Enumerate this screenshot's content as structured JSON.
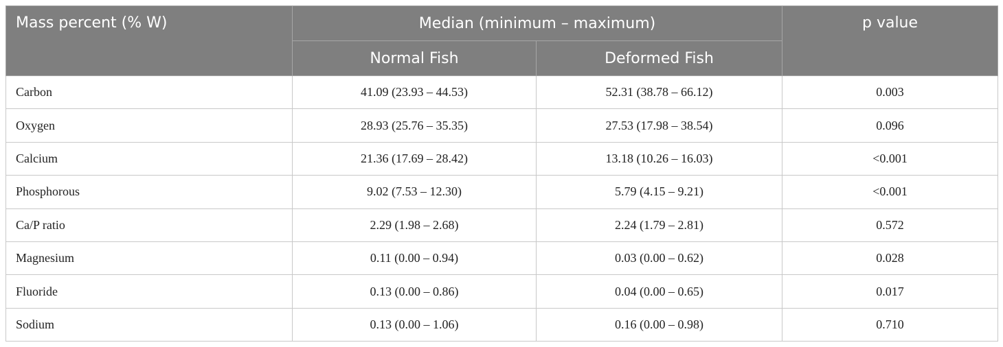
{
  "header": {
    "first": "Mass percent (% W)",
    "group": "Median (minimum – maximum)",
    "subcolumns": [
      "Normal Fish",
      "Deformed Fish"
    ],
    "last": "p value"
  },
  "table": {
    "rows": [
      [
        "Carbon",
        "41.09 (23.93 – 44.53)",
        "52.31 (38.78 – 66.12)",
        "0.003"
      ],
      [
        "Oxygen",
        "28.93 (25.76 – 35.35)",
        "27.53 (17.98 – 38.54)",
        "0.096"
      ],
      [
        "Calcium",
        "21.36 (17.69 – 28.42)",
        "13.18 (10.26 – 16.03)",
        "<0.001"
      ],
      [
        "Phosphorous",
        "9.02 (7.53 – 12.30)",
        "5.79 (4.15 – 9.21)",
        "<0.001"
      ],
      [
        "Ca/P ratio",
        "2.29 (1.98 – 2.68)",
        "2.24 (1.79 – 2.81)",
        "0.572"
      ],
      [
        "Magnesium",
        "0.11 (0.00 – 0.94)",
        "0.03 (0.00 – 0.62)",
        "0.028"
      ],
      [
        "Fluoride",
        "0.13 (0.00 – 0.86)",
        "0.04 (0.00 – 0.65)",
        "0.017"
      ],
      [
        "Sodium",
        "0.13 (0.00 – 1.06)",
        "0.16 (0.00 – 0.98)",
        "0.710"
      ]
    ]
  }
}
